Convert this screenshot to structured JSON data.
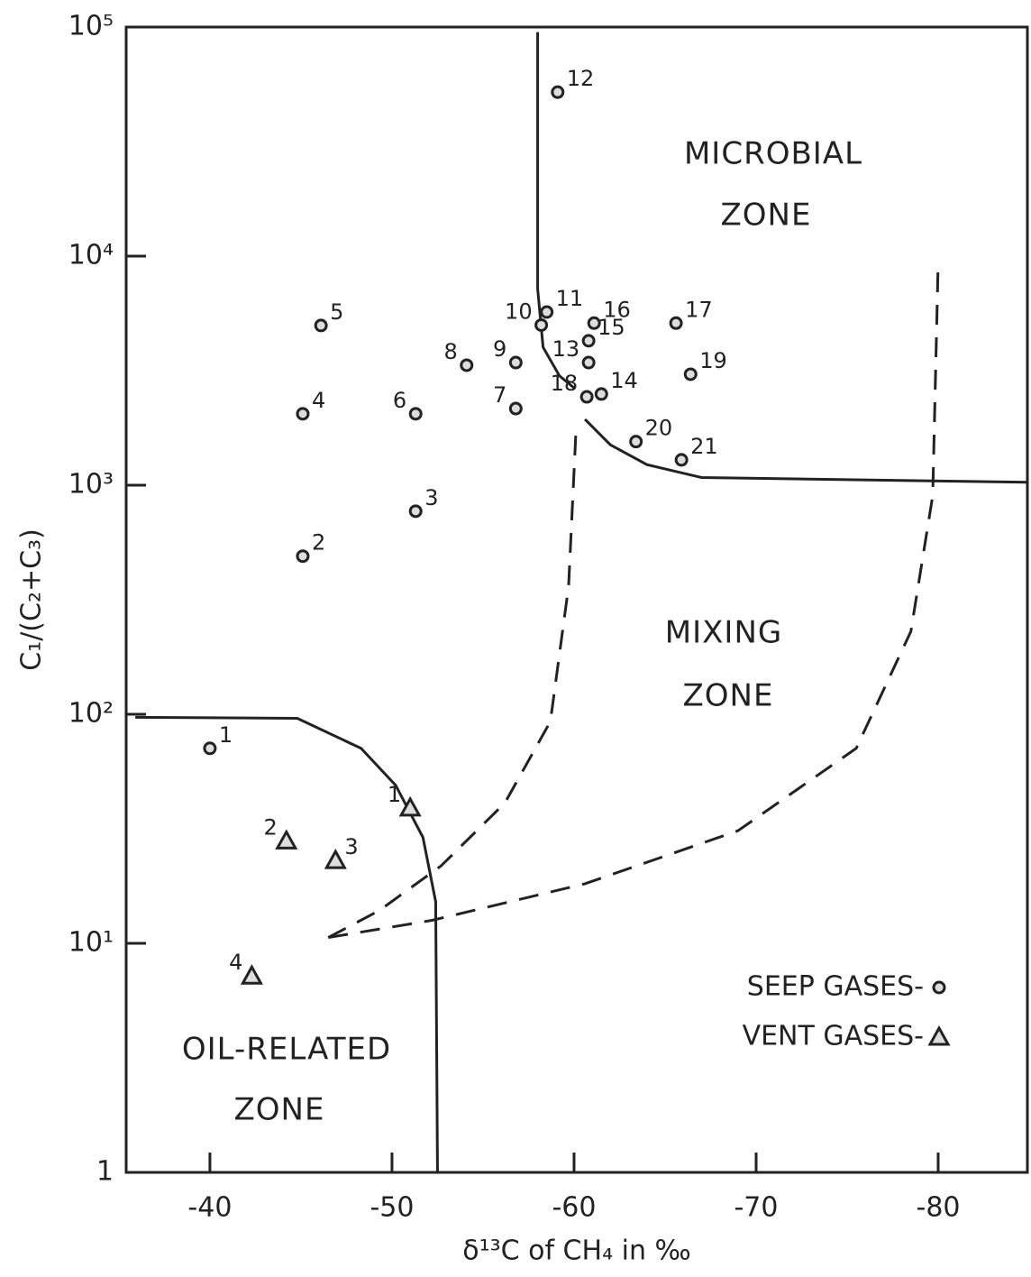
{
  "chart_data": {
    "type": "scatter",
    "xlabel": "δ¹³C of CH₄ in ‰",
    "ylabel": "C₁/(C₂+C₃)",
    "ylog": true,
    "xlim": [
      -35.4,
      -84.9
    ],
    "xticks": [
      -40,
      -50,
      -60,
      -70,
      -80
    ],
    "ylim": [
      1,
      100000
    ],
    "yticks": [
      1,
      {
        "value": 10,
        "label": "10¹"
      },
      {
        "value": 100,
        "label": "10²"
      },
      {
        "value": 1000,
        "label": "10³"
      },
      {
        "value": 10000,
        "label": "10⁴"
      },
      {
        "value": 100000,
        "label": "10⁵"
      }
    ],
    "zones": [
      "MICROBIAL",
      "ZONE",
      "MIXING",
      "ZONE",
      "OIL-RELATED",
      "ZONE"
    ],
    "series": [
      {
        "name": "SEEP GASES-",
        "marker": "circle",
        "color": "#222",
        "labels": [
          "1",
          "2",
          "3",
          "4",
          "5",
          "6",
          "7",
          "8",
          "9",
          "10",
          "11",
          "12",
          "13",
          "14",
          "15",
          "16",
          "17",
          "18",
          "19",
          "20",
          "21"
        ],
        "x": [
          -40.0,
          -45.1,
          -51.3,
          -45.1,
          -46.1,
          -51.3,
          -56.8,
          -54.1,
          -56.8,
          -58.2,
          -58.5,
          -59.1,
          -60.8,
          -61.5,
          -60.8,
          -61.1,
          -65.6,
          -60.7,
          -66.4,
          -63.4,
          -65.9
        ],
        "values": [
          71,
          490,
          770,
          2050,
          4980,
          2050,
          2160,
          3340,
          3430,
          5000,
          5700,
          52000,
          3430,
          2500,
          4270,
          5100,
          5100,
          2430,
          3050,
          1550,
          1290
        ]
      },
      {
        "name": "VENT GASES-",
        "marker": "triangle",
        "color": "#222",
        "labels": [
          "1",
          "2",
          "3",
          "4"
        ],
        "x": [
          -51.0,
          -44.2,
          -46.9,
          -42.3
        ],
        "values": [
          39,
          28,
          23,
          7.2
        ]
      }
    ],
    "boundaries": [
      {
        "style": "solid",
        "x": [
          -58,
          -58,
          -58.3,
          -59.2,
          -60
        ],
        "y": [
          95000,
          7200,
          4000,
          3000,
          2660
        ]
      },
      {
        "style": "solid",
        "x": [
          -60.6,
          -62,
          -64,
          -67,
          -84.9
        ],
        "y": [
          1940,
          1500,
          1230,
          1080,
          1030
        ]
      },
      {
        "style": "solid",
        "x": [
          -35.9,
          -44.8,
          -48.3,
          -50.2,
          -51.7,
          -52.4,
          -52.5
        ],
        "y": [
          97,
          96,
          71,
          49,
          29,
          15.2,
          1
        ]
      },
      {
        "style": "dashed",
        "x": [
          -46.5,
          -49.3,
          -52.7,
          -56.2,
          -58.7,
          -59.7,
          -60.1
        ],
        "y": [
          10.6,
          13.9,
          21.8,
          41,
          93,
          362,
          1690
        ]
      },
      {
        "style": "dashed",
        "x": [
          -46.5,
          -52.2,
          -60.6,
          -69.0,
          -75.5,
          -78.5,
          -79.7,
          -80.0
        ],
        "y": [
          10.6,
          12.6,
          18.2,
          31,
          71,
          230,
          900,
          9460
        ]
      }
    ]
  }
}
